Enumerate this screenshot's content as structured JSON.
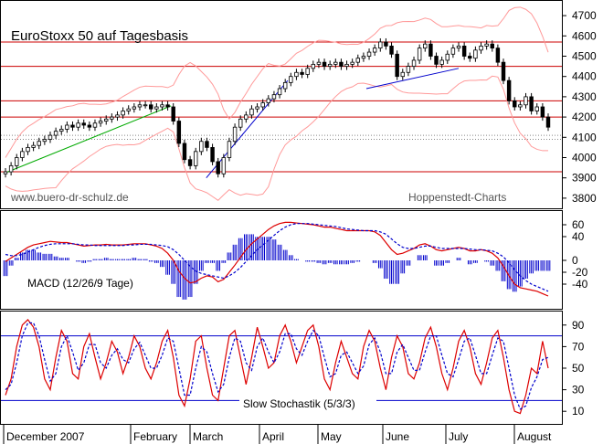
{
  "chart_data": [
    {
      "type": "candlestick",
      "title": "EuroStoxx 50 auf Tagesbasis",
      "source_left": "www.buero-dr-schulz.de",
      "source_right": "Hoppenstedt-Charts",
      "ylim": [
        3750,
        4750
      ],
      "yticks": [
        3800,
        3900,
        4000,
        4100,
        4200,
        4300,
        4400,
        4500,
        4600,
        4700
      ],
      "resistance_support_levels": [
        4570,
        4450,
        4280,
        4200,
        3930
      ],
      "band_levels": [
        4110,
        4090
      ],
      "trendlines": [
        {
          "color": "#00aa00",
          "from": [
            0.0,
            3925
          ],
          "to": [
            0.305,
            4255
          ]
        },
        {
          "color": "#0000cc",
          "from": [
            0.37,
            3900
          ],
          "to": [
            0.52,
            4380
          ]
        },
        {
          "color": "#0000cc",
          "from": [
            0.665,
            4340
          ],
          "to": [
            0.835,
            4440
          ]
        }
      ],
      "series": {
        "close": [
          3930,
          3960,
          4000,
          4030,
          4050,
          4060,
          4080,
          4090,
          4110,
          4130,
          4140,
          4160,
          4150,
          4170,
          4160,
          4150,
          4170,
          4180,
          4190,
          4200,
          4210,
          4230,
          4240,
          4250,
          4260,
          4260,
          4240,
          4250,
          4260,
          4250,
          4180,
          4070,
          3990,
          3960,
          4030,
          4080,
          4050,
          3980,
          3920,
          4000,
          4080,
          4150,
          4190,
          4210,
          4240,
          4250,
          4270,
          4290,
          4310,
          4340,
          4370,
          4400,
          4420,
          4410,
          4440,
          4460,
          4470,
          4450,
          4460,
          4470,
          4450,
          4460,
          4470,
          4490,
          4500,
          4520,
          4540,
          4570,
          4550,
          4510,
          4400,
          4420,
          4450,
          4480,
          4540,
          4560,
          4500,
          4460,
          4480,
          4510,
          4540,
          4550,
          4500,
          4490,
          4530,
          4550,
          4560,
          4540,
          4470,
          4380,
          4280,
          4250,
          4260,
          4300,
          4230,
          4250,
          4200,
          4150
        ]
      }
    },
    {
      "type": "line",
      "label": "MACD (12/26/9 Tage)",
      "ylim": [
        -80,
        80
      ],
      "yticks": [
        60,
        40,
        0,
        -20,
        -40
      ],
      "series": [
        {
          "color": "#dd0000",
          "style": "solid",
          "values": [
            -2,
            4,
            10,
            16,
            22,
            26,
            28,
            30,
            32,
            31,
            30,
            30,
            28,
            26,
            24,
            25,
            26,
            26,
            27,
            26,
            26,
            26,
            27,
            28,
            28,
            28,
            26,
            24,
            20,
            12,
            0,
            -18,
            -30,
            -38,
            -36,
            -30,
            -26,
            -28,
            -36,
            -32,
            -20,
            -8,
            5,
            18,
            28,
            36,
            44,
            52,
            58,
            62,
            64,
            64,
            63,
            62,
            61,
            60,
            58,
            56,
            56,
            54,
            52,
            50,
            50,
            50,
            50,
            50,
            48,
            42,
            30,
            18,
            10,
            12,
            16,
            20,
            26,
            28,
            24,
            18,
            16,
            18,
            20,
            22,
            20,
            16,
            16,
            18,
            16,
            12,
            4,
            -10,
            -26,
            -40,
            -46,
            -48,
            -50,
            -52,
            -56,
            -60
          ]
        },
        {
          "color": "#0000cc",
          "style": "dashed",
          "values": [
            10,
            8,
            8,
            10,
            14,
            18,
            22,
            25,
            27,
            28,
            28,
            28,
            28,
            27,
            26,
            26,
            25,
            25,
            25,
            25,
            25,
            25,
            26,
            26,
            27,
            27,
            27,
            26,
            25,
            23,
            18,
            10,
            0,
            -10,
            -18,
            -22,
            -24,
            -26,
            -28,
            -30,
            -26,
            -20,
            -12,
            -2,
            8,
            18,
            26,
            34,
            42,
            50,
            56,
            60,
            62,
            62,
            62,
            61,
            60,
            59,
            58,
            57,
            55,
            53,
            52,
            51,
            50,
            50,
            50,
            48,
            44,
            36,
            28,
            22,
            20,
            20,
            22,
            24,
            24,
            22,
            20,
            20,
            20,
            20,
            20,
            19,
            18,
            18,
            17,
            16,
            12,
            6,
            -4,
            -16,
            -26,
            -34,
            -40,
            -44,
            -48,
            -52
          ]
        }
      ]
    },
    {
      "type": "line",
      "label": "Slow Stochastik (5/3/3)",
      "ylim": [
        0,
        100
      ],
      "yticks": [
        90,
        70,
        50,
        30,
        10
      ],
      "reference_lines": [
        80,
        20
      ],
      "series": [
        {
          "color": "#dd0000",
          "style": "solid",
          "values": [
            25,
            40,
            70,
            90,
            95,
            88,
            70,
            40,
            30,
            60,
            85,
            75,
            45,
            40,
            70,
            82,
            60,
            40,
            55,
            75,
            65,
            45,
            60,
            80,
            70,
            50,
            40,
            55,
            75,
            85,
            60,
            25,
            15,
            40,
            75,
            80,
            50,
            25,
            20,
            50,
            80,
            85,
            60,
            35,
            60,
            88,
            70,
            50,
            55,
            80,
            90,
            75,
            55,
            70,
            85,
            90,
            70,
            40,
            30,
            55,
            75,
            60,
            45,
            40,
            70,
            85,
            75,
            50,
            30,
            60,
            80,
            70,
            45,
            40,
            55,
            78,
            88,
            70,
            45,
            30,
            50,
            75,
            85,
            70,
            45,
            35,
            55,
            78,
            85,
            60,
            30,
            10,
            8,
            25,
            50,
            45,
            75,
            50
          ]
        },
        {
          "color": "#0000cc",
          "style": "dashed",
          "values": [
            30,
            35,
            55,
            80,
            92,
            92,
            80,
            58,
            38,
            45,
            70,
            80,
            65,
            48,
            55,
            72,
            72,
            55,
            50,
            62,
            68,
            58,
            55,
            68,
            74,
            62,
            50,
            50,
            62,
            78,
            75,
            50,
            25,
            25,
            50,
            70,
            65,
            45,
            28,
            35,
            60,
            78,
            75,
            55,
            48,
            70,
            78,
            65,
            55,
            65,
            82,
            82,
            68,
            62,
            75,
            85,
            80,
            60,
            42,
            45,
            62,
            65,
            55,
            45,
            52,
            72,
            78,
            65,
            45,
            45,
            65,
            72,
            60,
            48,
            48,
            65,
            80,
            80,
            62,
            45,
            42,
            58,
            75,
            78,
            62,
            45,
            45,
            62,
            78,
            75,
            50,
            25,
            12,
            15,
            32,
            42,
            58,
            60
          ]
        }
      ]
    }
  ],
  "x_axis": {
    "labels": [
      "December 2007",
      "February",
      "March",
      "April",
      "May",
      "June",
      "July",
      "August"
    ]
  },
  "colors": {
    "up": "#ffffff",
    "down": "#000000",
    "levels": "#cc0000",
    "bands": "#ff9999",
    "grid_dotted": "#888888",
    "histogram": "#0000cc"
  }
}
